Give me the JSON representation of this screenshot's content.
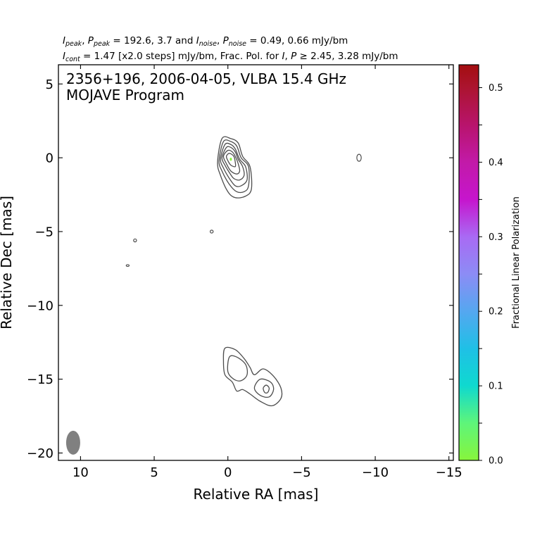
{
  "header": {
    "line1": {
      "i": "I",
      "peak": "peak",
      "comma1": ", ",
      "p": "P",
      "peak2": "peak",
      "eq1": " = 192.6, 3.7 and ",
      "i2": "I",
      "noise": "noise",
      "comma2": ", ",
      "p2": "P",
      "noise2": "noise",
      "eq2": " = 0.49, 0.66 mJy/bm"
    },
    "line2": {
      "i": "I",
      "cont": "cont",
      "rest1": " = 1.47 [x2.0 steps] mJy/bm, Frac. Pol. for ",
      "i2": "I",
      "sep": ", ",
      "p": "P",
      "rest2": " ≥  2.45, 3.28 mJy/bm"
    }
  },
  "chart_data": {
    "type": "contour",
    "title": "2356+196, 2006-04-05, VLBA 15.4 GHz",
    "subtitle": "MOJAVE Program",
    "xlabel": "Relative RA [mas]",
    "ylabel": "Relative Dec [mas]",
    "xlim": [
      11.5,
      -15.3
    ],
    "ylim": [
      -20.5,
      6.3
    ],
    "xticks": [
      10,
      5,
      0,
      -5,
      -10,
      -15
    ],
    "xtick_labels": [
      "10",
      "5",
      "0",
      "−5",
      "−10",
      "−15"
    ],
    "yticks": [
      5,
      0,
      -5,
      -10,
      -15,
      -20
    ],
    "ytick_labels": [
      "5",
      "0",
      "−5",
      "−10",
      "−15",
      "−20"
    ],
    "contour_color": "#4d4d4d",
    "components": [
      {
        "name": "core",
        "peak": [
          -0.2,
          -0.1
        ],
        "levels": [
          [
            [
              0.4,
              1.3
            ],
            [
              -0.2,
              1.3
            ],
            [
              -0.7,
              1.0
            ],
            [
              -1.0,
              0.1
            ],
            [
              -1.5,
              -0.6
            ],
            [
              -1.6,
              -2.1
            ],
            [
              -1.2,
              -2.6
            ],
            [
              -0.5,
              -2.7
            ],
            [
              0.0,
              -2.3
            ],
            [
              0.5,
              -1.2
            ],
            [
              0.7,
              -0.3
            ]
          ],
          [
            [
              0.3,
              1.1
            ],
            [
              -0.2,
              1.1
            ],
            [
              -0.6,
              0.8
            ],
            [
              -0.9,
              0.0
            ],
            [
              -1.4,
              -0.6
            ],
            [
              -1.4,
              -1.9
            ],
            [
              -1.1,
              -2.3
            ],
            [
              -0.6,
              -2.3
            ],
            [
              -0.1,
              -1.8
            ],
            [
              0.4,
              -0.9
            ],
            [
              0.6,
              -0.2
            ]
          ],
          [
            [
              0.2,
              0.9
            ],
            [
              -0.2,
              0.9
            ],
            [
              -0.5,
              0.6
            ],
            [
              -0.8,
              -0.1
            ],
            [
              -1.2,
              -0.6
            ],
            [
              -1.3,
              -1.5
            ],
            [
              -0.9,
              -1.9
            ],
            [
              -0.5,
              -1.9
            ],
            [
              -0.1,
              -1.4
            ],
            [
              0.3,
              -0.7
            ],
            [
              0.5,
              -0.1
            ]
          ],
          [
            [
              0.1,
              0.7
            ],
            [
              -0.2,
              0.7
            ],
            [
              -0.5,
              0.4
            ],
            [
              -0.7,
              -0.1
            ],
            [
              -1.0,
              -0.6
            ],
            [
              -1.1,
              -1.2
            ],
            [
              -0.8,
              -1.5
            ],
            [
              -0.4,
              -1.4
            ],
            [
              -0.1,
              -1.0
            ],
            [
              0.2,
              -0.5
            ],
            [
              0.4,
              0.0
            ]
          ],
          [
            [
              0.0,
              0.5
            ],
            [
              -0.3,
              0.4
            ],
            [
              -0.5,
              0.1
            ],
            [
              -0.7,
              -0.4
            ],
            [
              -0.8,
              -0.9
            ],
            [
              -0.6,
              -1.1
            ],
            [
              -0.2,
              -0.9
            ],
            [
              0.1,
              -0.4
            ],
            [
              0.3,
              0.1
            ]
          ],
          [
            [
              -0.1,
              0.3
            ],
            [
              -0.4,
              0.1
            ],
            [
              -0.5,
              -0.3
            ],
            [
              -0.5,
              -0.6
            ],
            [
              -0.2,
              -0.5
            ],
            [
              0.0,
              -0.2
            ],
            [
              0.1,
              0.1
            ]
          ]
        ],
        "polarization_dot": {
          "fraction": 0.02,
          "x": -0.2,
          "y": -0.1
        }
      },
      {
        "name": "south-blob",
        "levels": [
          [
            [
              0.2,
              -12.9
            ],
            [
              -0.5,
              -13.0
            ],
            [
              -1.1,
              -13.6
            ],
            [
              -1.5,
              -14.2
            ],
            [
              -1.8,
              -14.7
            ],
            [
              -2.4,
              -14.3
            ],
            [
              -3.1,
              -14.8
            ],
            [
              -3.6,
              -15.6
            ],
            [
              -3.6,
              -16.3
            ],
            [
              -3.0,
              -16.8
            ],
            [
              -2.2,
              -16.5
            ],
            [
              -1.5,
              -16.0
            ],
            [
              -1.0,
              -15.7
            ],
            [
              -0.6,
              -15.8
            ],
            [
              -0.3,
              -15.2
            ],
            [
              0.2,
              -14.7
            ],
            [
              0.3,
              -13.8
            ]
          ],
          [
            [
              -0.1,
              -13.5
            ],
            [
              -0.6,
              -13.5
            ],
            [
              -1.2,
              -14.0
            ],
            [
              -1.3,
              -14.7
            ],
            [
              -0.9,
              -15.1
            ],
            [
              -0.4,
              -15.0
            ],
            [
              0.0,
              -14.5
            ]
          ],
          [
            [
              -2.2,
              -15.0
            ],
            [
              -2.9,
              -15.2
            ],
            [
              -3.1,
              -15.7
            ],
            [
              -2.8,
              -16.2
            ],
            [
              -2.2,
              -16.1
            ],
            [
              -1.8,
              -15.6
            ]
          ],
          [
            [
              -2.6,
              -15.4
            ],
            [
              -2.8,
              -15.6
            ],
            [
              -2.7,
              -15.9
            ],
            [
              -2.5,
              -15.9
            ],
            [
              -2.4,
              -15.6
            ]
          ]
        ]
      },
      {
        "name": "east-spot-1",
        "center": [
          6.3,
          -5.6
        ],
        "rx": 0.1,
        "ry": 0.1
      },
      {
        "name": "east-spot-2",
        "center": [
          6.8,
          -7.3
        ],
        "rx": 0.1,
        "ry": 0.06
      },
      {
        "name": "mid-spot",
        "center": [
          1.1,
          -5.0
        ],
        "rx": 0.1,
        "ry": 0.1
      },
      {
        "name": "west-spot",
        "center": [
          -8.9,
          0.0
        ],
        "rx": 0.15,
        "ry": 0.24
      }
    ],
    "beam": {
      "x": 10.5,
      "y": -19.3,
      "major": 1.1,
      "minor": 0.65,
      "pa": 0,
      "color": "#808080"
    },
    "colorbar": {
      "label": "Fractional Linear Polarization",
      "range": [
        0.0,
        0.5307
      ],
      "ticks": [
        0.0,
        0.1,
        0.2,
        0.3,
        0.4,
        0.5
      ],
      "tick_labels": [
        "0.0",
        "0.1",
        "0.2",
        "0.3",
        "0.4",
        "0.5"
      ],
      "minor_ticks": [
        0.05,
        0.15,
        0.25,
        0.35,
        0.45
      ],
      "colormap": [
        {
          "v": 0.0,
          "color": "#87f53c"
        },
        {
          "v": 0.05,
          "color": "#5ef57a"
        },
        {
          "v": 0.1,
          "color": "#0fd9cf"
        },
        {
          "v": 0.15,
          "color": "#1fc0e6"
        },
        {
          "v": 0.2,
          "color": "#55a7f0"
        },
        {
          "v": 0.25,
          "color": "#8c8cf5"
        },
        {
          "v": 0.3,
          "color": "#a96af4"
        },
        {
          "v": 0.35,
          "color": "#c615cd"
        },
        {
          "v": 0.4,
          "color": "#c21aa8"
        },
        {
          "v": 0.45,
          "color": "#b8146c"
        },
        {
          "v": 0.5,
          "color": "#ac1430"
        },
        {
          "v": 0.5307,
          "color": "#a30e10"
        }
      ]
    }
  }
}
